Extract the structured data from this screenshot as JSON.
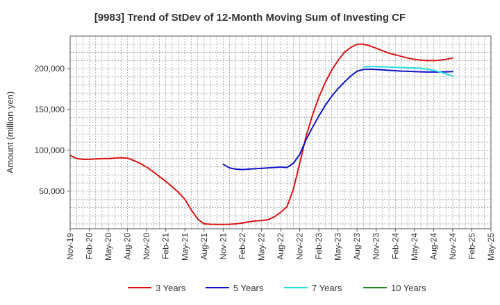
{
  "chart_data": {
    "type": "line",
    "title": "[9983]  Trend of StDev of 12-Month Moving Sum of Investing CF",
    "ylabel": "Amount (million yen)",
    "xlabel": "",
    "x_tick_labels": [
      "Nov-19",
      "Feb-20",
      "May-20",
      "Aug-20",
      "Nov-20",
      "Feb-21",
      "May-21",
      "Aug-21",
      "Nov-21",
      "Feb-22",
      "May-22",
      "Aug-22",
      "Nov-22",
      "Feb-23",
      "May-23",
      "Aug-23",
      "Nov-23",
      "Feb-24",
      "May-24",
      "Aug-24",
      "Nov-24",
      "Feb-25",
      "May-25"
    ],
    "y_ticks": [
      50000,
      100000,
      150000,
      200000
    ],
    "y_tick_labels": [
      "50,000",
      "100,000",
      "150,000",
      "200,000"
    ],
    "ylim": [
      4000,
      240000
    ],
    "grid": true,
    "legend_position": "bottom",
    "series": [
      {
        "name": "3 Years",
        "color": "#dd1111",
        "points": [
          [
            "Nov-19",
            94000
          ],
          [
            "Dec-19",
            90000
          ],
          [
            "Jan-20",
            89000
          ],
          [
            "Feb-20",
            89000
          ],
          [
            "Mar-20",
            89500
          ],
          [
            "Apr-20",
            89800
          ],
          [
            "May-20",
            90000
          ],
          [
            "Jun-20",
            90500
          ],
          [
            "Jul-20",
            91000
          ],
          [
            "Aug-20",
            90500
          ],
          [
            "Sep-20",
            87500
          ],
          [
            "Oct-20",
            84000
          ],
          [
            "Nov-20",
            79500
          ],
          [
            "Dec-20",
            74000
          ],
          [
            "Jan-21",
            68000
          ],
          [
            "Feb-21",
            62000
          ],
          [
            "Mar-21",
            55500
          ],
          [
            "Apr-21",
            48500
          ],
          [
            "May-21",
            40000
          ],
          [
            "Jun-21",
            27000
          ],
          [
            "Jul-21",
            16000
          ],
          [
            "Aug-21",
            10000
          ],
          [
            "Sep-21",
            9500
          ],
          [
            "Oct-21",
            9300
          ],
          [
            "Nov-21",
            9300
          ],
          [
            "Dec-21",
            9500
          ],
          [
            "Jan-22",
            10000
          ],
          [
            "Feb-22",
            11000
          ],
          [
            "Mar-22",
            12500
          ],
          [
            "Apr-22",
            13500
          ],
          [
            "May-22",
            14000
          ],
          [
            "Jun-22",
            15000
          ],
          [
            "Jul-22",
            18500
          ],
          [
            "Aug-22",
            24000
          ],
          [
            "Sep-22",
            31000
          ],
          [
            "Oct-22",
            52000
          ],
          [
            "Nov-22",
            84000
          ],
          [
            "Dec-22",
            117000
          ],
          [
            "Jan-23",
            143000
          ],
          [
            "Feb-23",
            165000
          ],
          [
            "Mar-23",
            183000
          ],
          [
            "Apr-23",
            198000
          ],
          [
            "May-23",
            210000
          ],
          [
            "Jun-23",
            220000
          ],
          [
            "Jul-23",
            226000
          ],
          [
            "Aug-23",
            230000
          ],
          [
            "Sep-23",
            230000
          ],
          [
            "Oct-23",
            228000
          ],
          [
            "Nov-23",
            225000
          ],
          [
            "Dec-23",
            222000
          ],
          [
            "Jan-24",
            219000
          ],
          [
            "Feb-24",
            217000
          ],
          [
            "Mar-24",
            215000
          ],
          [
            "Apr-24",
            213000
          ],
          [
            "May-24",
            211500
          ],
          [
            "Jun-24",
            210500
          ],
          [
            "Jul-24",
            210000
          ],
          [
            "Aug-24",
            210000
          ],
          [
            "Sep-24",
            210500
          ],
          [
            "Oct-24",
            211500
          ],
          [
            "Nov-24",
            213000
          ]
        ]
      },
      {
        "name": "5 Years",
        "color": "#1111cc",
        "points": [
          [
            "Nov-21",
            83000
          ],
          [
            "Dec-21",
            78500
          ],
          [
            "Jan-22",
            77000
          ],
          [
            "Feb-22",
            76500
          ],
          [
            "Mar-22",
            77000
          ],
          [
            "Apr-22",
            77500
          ],
          [
            "May-22",
            78000
          ],
          [
            "Jun-22",
            78500
          ],
          [
            "Jul-22",
            79000
          ],
          [
            "Aug-22",
            79500
          ],
          [
            "Sep-22",
            79000
          ],
          [
            "Oct-22",
            84000
          ],
          [
            "Nov-22",
            95000
          ],
          [
            "Dec-22",
            113000
          ],
          [
            "Jan-23",
            128000
          ],
          [
            "Feb-23",
            142000
          ],
          [
            "Mar-23",
            155000
          ],
          [
            "Apr-23",
            166000
          ],
          [
            "May-23",
            175500
          ],
          [
            "Jun-23",
            183500
          ],
          [
            "Jul-23",
            191000
          ],
          [
            "Aug-23",
            197000
          ],
          [
            "Sep-23",
            199000
          ],
          [
            "Oct-23",
            199500
          ],
          [
            "Nov-23",
            199000
          ],
          [
            "Dec-23",
            198500
          ],
          [
            "Jan-24",
            198000
          ],
          [
            "Feb-24",
            197500
          ],
          [
            "Mar-24",
            197000
          ],
          [
            "Apr-24",
            196800
          ],
          [
            "May-24",
            196500
          ],
          [
            "Jun-24",
            196200
          ],
          [
            "Jul-24",
            196000
          ],
          [
            "Aug-24",
            196000
          ],
          [
            "Sep-24",
            196000
          ],
          [
            "Oct-24",
            196200
          ],
          [
            "Nov-24",
            196500
          ]
        ]
      },
      {
        "name": "7 Years",
        "color": "#22dddd",
        "points": [
          [
            "Sep-23",
            202000
          ],
          [
            "Oct-23",
            202500
          ],
          [
            "Nov-23",
            202500
          ],
          [
            "Dec-23",
            202300
          ],
          [
            "Jan-24",
            202000
          ],
          [
            "Feb-24",
            201800
          ],
          [
            "Mar-24",
            201500
          ],
          [
            "Apr-24",
            201300
          ],
          [
            "May-24",
            201000
          ],
          [
            "Jun-24",
            200500
          ],
          [
            "Jul-24",
            199500
          ],
          [
            "Aug-24",
            198000
          ],
          [
            "Sep-24",
            196000
          ],
          [
            "Oct-24",
            193500
          ],
          [
            "Nov-24",
            191000
          ]
        ]
      },
      {
        "name": "10 Years",
        "color": "#228822",
        "points": []
      }
    ]
  }
}
